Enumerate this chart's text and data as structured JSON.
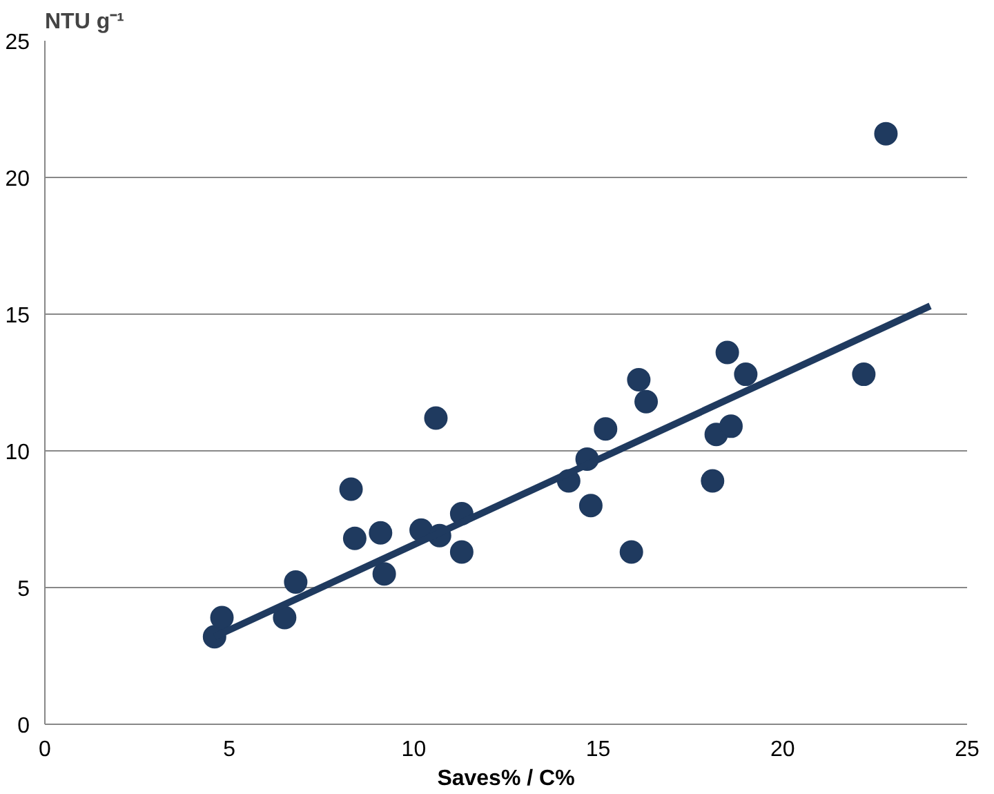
{
  "chart_data": {
    "type": "scatter",
    "ylabel": "NTU g⁻¹",
    "xlabel": "Saves% / C%",
    "xlim": [
      0,
      25
    ],
    "ylim": [
      0,
      25
    ],
    "xticks": [
      0,
      5,
      10,
      15,
      20,
      25
    ],
    "yticks": [
      0,
      5,
      10,
      15,
      20,
      25
    ],
    "grid": "y",
    "marker": "circle",
    "series": [
      {
        "color": "#1f3a5f",
        "x": [
          4.6,
          4.8,
          6.5,
          6.8,
          8.3,
          8.4,
          9.1,
          9.2,
          10.2,
          10.6,
          10.7,
          11.3,
          11.3,
          14.2,
          14.7,
          14.8,
          15.2,
          15.9,
          16.1,
          16.3,
          18.1,
          18.2,
          18.5,
          18.6,
          19.0,
          22.2,
          22.8
        ],
        "values": [
          3.2,
          3.9,
          3.9,
          5.2,
          8.6,
          6.8,
          7.0,
          5.5,
          7.1,
          11.2,
          6.9,
          7.7,
          6.3,
          8.9,
          9.7,
          8.0,
          10.8,
          6.3,
          12.6,
          11.8,
          8.9,
          10.6,
          13.6,
          10.9,
          12.8,
          12.8,
          21.6
        ]
      },
      {
        "type": "line",
        "marker": "none",
        "color": "#1f3a5f",
        "x": [
          4.6,
          24.0
        ],
        "values": [
          3.2,
          15.3
        ]
      }
    ]
  }
}
